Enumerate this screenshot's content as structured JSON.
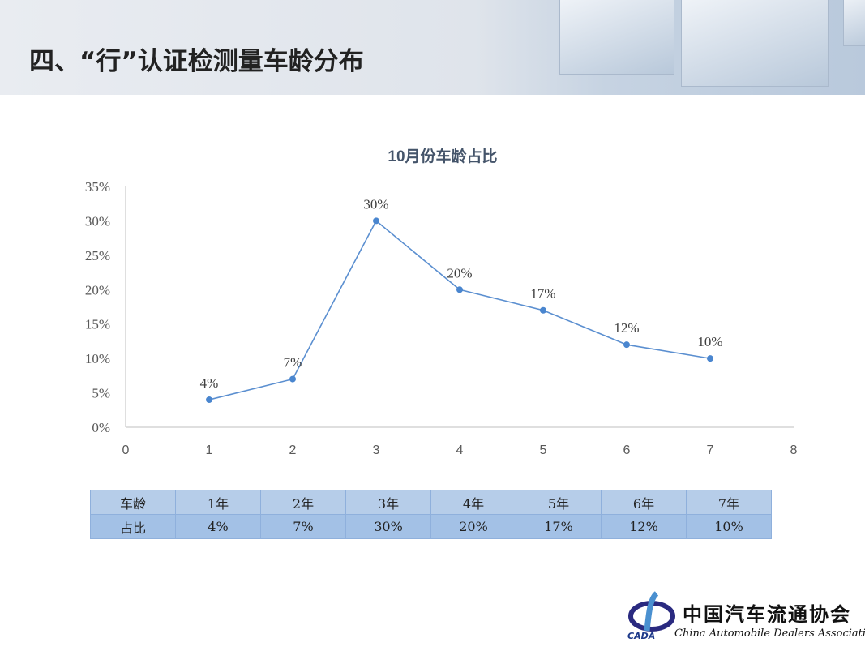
{
  "header": {
    "title": "四、“行”认证检测量车龄分布"
  },
  "chart_data": {
    "type": "line",
    "title": "10月份车龄占比",
    "x": [
      1,
      2,
      3,
      4,
      5,
      6,
      7
    ],
    "values": [
      4,
      7,
      30,
      20,
      17,
      12,
      10
    ],
    "data_labels": [
      "4%",
      "7%",
      "30%",
      "20%",
      "17%",
      "12%",
      "10%"
    ],
    "xlim": [
      0,
      8
    ],
    "ylim": [
      0,
      35
    ],
    "x_ticks": [
      "0",
      "1",
      "2",
      "3",
      "4",
      "5",
      "6",
      "7",
      "8"
    ],
    "y_ticks": [
      "0%",
      "5%",
      "10%",
      "15%",
      "20%",
      "25%",
      "30%",
      "35%"
    ],
    "grid": false,
    "legend": "none",
    "color": "#5b8fd0"
  },
  "table": {
    "row1": [
      "车龄",
      "1年",
      "2年",
      "3年",
      "4年",
      "5年",
      "6年",
      "7年"
    ],
    "row2": [
      "占比",
      "4%",
      "7%",
      "30%",
      "20%",
      "17%",
      "12%",
      "10%"
    ]
  },
  "logo": {
    "cn": "中国汽车流通协会",
    "en": "China Automobile Dealers Association",
    "abbr": "CADA"
  }
}
